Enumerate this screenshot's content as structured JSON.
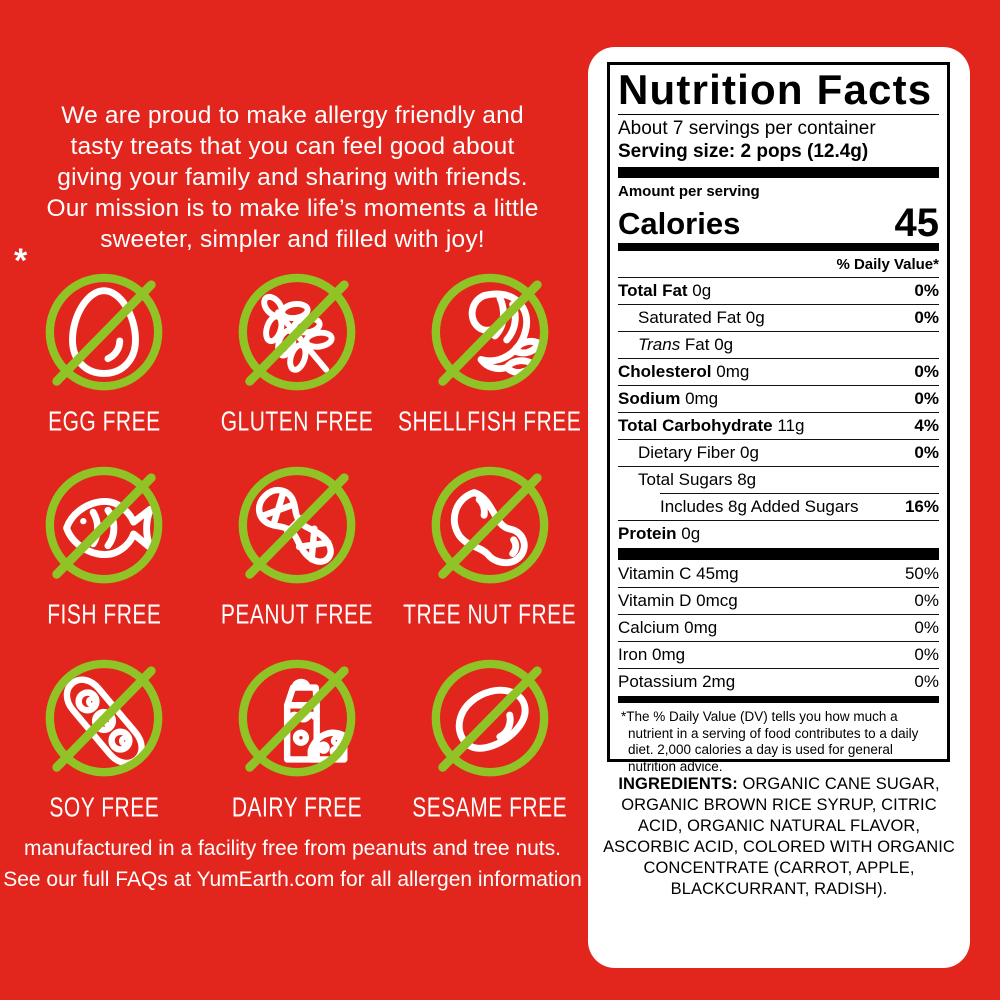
{
  "colors": {
    "background": "#e2261d",
    "green": "#8fc326",
    "panel": "#ffffff",
    "ink": "#000000",
    "white_text": "#ffffff"
  },
  "intro": {
    "lines": [
      "We are proud to make allergy friendly and",
      "tasty treats that you can feel  good about",
      "giving your family and sharing with friends.",
      "Our mission is to make life’s moments a little",
      "sweeter, simpler and filled with joy!"
    ]
  },
  "asterisk": "*",
  "allergens": {
    "items": [
      {
        "id": "egg",
        "icon": "egg-icon",
        "label": "EGG FREE"
      },
      {
        "id": "gluten",
        "icon": "wheat-icon",
        "label": "GLUTEN FREE"
      },
      {
        "id": "shellfish",
        "icon": "shrimp-icon",
        "label": "SHELLFISH FREE"
      },
      {
        "id": "fish",
        "icon": "fish-icon",
        "label": "FISH FREE"
      },
      {
        "id": "peanut",
        "icon": "peanut-icon",
        "label": "PEANUT FREE"
      },
      {
        "id": "treenut",
        "icon": "cashew-icon",
        "label": "TREE NUT FREE"
      },
      {
        "id": "soy",
        "icon": "soy-pod-icon",
        "label": "SOY FREE"
      },
      {
        "id": "dairy",
        "icon": "milk-carton-icon",
        "label": "DAIRY FREE"
      },
      {
        "id": "sesame",
        "icon": "sesame-seed-icon",
        "label": "SESAME FREE"
      }
    ]
  },
  "footer": {
    "lines": [
      "manufactured in a facility free from peanuts and tree nuts.",
      "See our full FAQs at YumEarth.com for all allergen information"
    ]
  },
  "nutrition": {
    "title": "Nutrition Facts",
    "servings_per_container": "About 7 servings per container",
    "serving_size": "Serving size: 2 pops (12.4g)",
    "amount_per_serving": "Amount per serving",
    "calories_label": "Calories",
    "calories_value": "45",
    "daily_value_header": "% Daily Value*",
    "rows": [
      {
        "name": "Total Fat",
        "amount": "0g",
        "dv": "0%",
        "bold": true,
        "indent": 0
      },
      {
        "name": "Saturated Fat",
        "amount": "0g",
        "dv": "0%",
        "bold": false,
        "indent": 1
      },
      {
        "name": "Trans Fat",
        "amount": "0g",
        "dv": "",
        "bold": false,
        "indent": 1,
        "italic_first": true
      },
      {
        "name": "Cholesterol",
        "amount": "0mg",
        "dv": "0%",
        "bold": true,
        "indent": 0
      },
      {
        "name": "Sodium",
        "amount": "0mg",
        "dv": "0%",
        "bold": true,
        "indent": 0
      },
      {
        "name": "Total Carbohydrate",
        "amount": "11g",
        "dv": "4%",
        "bold": true,
        "indent": 0
      },
      {
        "name": "Dietary Fiber",
        "amount": "0g",
        "dv": "0%",
        "bold": false,
        "indent": 1
      },
      {
        "name": "Total Sugars",
        "amount": "8g",
        "dv": "",
        "bold": false,
        "indent": 1
      },
      {
        "name": "Includes 8g Added Sugars",
        "amount": "",
        "dv": "16%",
        "bold": false,
        "indent": 2,
        "partial_rule": true
      },
      {
        "name": "Protein",
        "amount": "0g",
        "dv": "",
        "bold": true,
        "indent": 0
      }
    ],
    "vitamins": [
      {
        "name": "Vitamin C",
        "amount": "45mg",
        "dv": "50%"
      },
      {
        "name": "Vitamin D",
        "amount": "0mcg",
        "dv": "0%"
      },
      {
        "name": "Calcium",
        "amount": "0mg",
        "dv": "0%"
      },
      {
        "name": "Iron",
        "amount": "0mg",
        "dv": "0%"
      },
      {
        "name": "Potassium",
        "amount": "2mg",
        "dv": "0%"
      }
    ],
    "footnote": "*The % Daily Value (DV) tells you how much a nutrient in a serving of food contributes to a daily diet. 2,000 calories a day is used for general nutrition advice."
  },
  "ingredients": {
    "label": "INGREDIENTS:",
    "text": "ORGANIC CANE SUGAR, ORGANIC BROWN RICE SYRUP, CITRIC ACID, ORGANIC NATURAL FLAVOR, ASCORBIC ACID, COLORED WITH ORGANIC CONCENTRATE (CARROT, APPLE, BLACKCURRANT, RADISH)."
  }
}
